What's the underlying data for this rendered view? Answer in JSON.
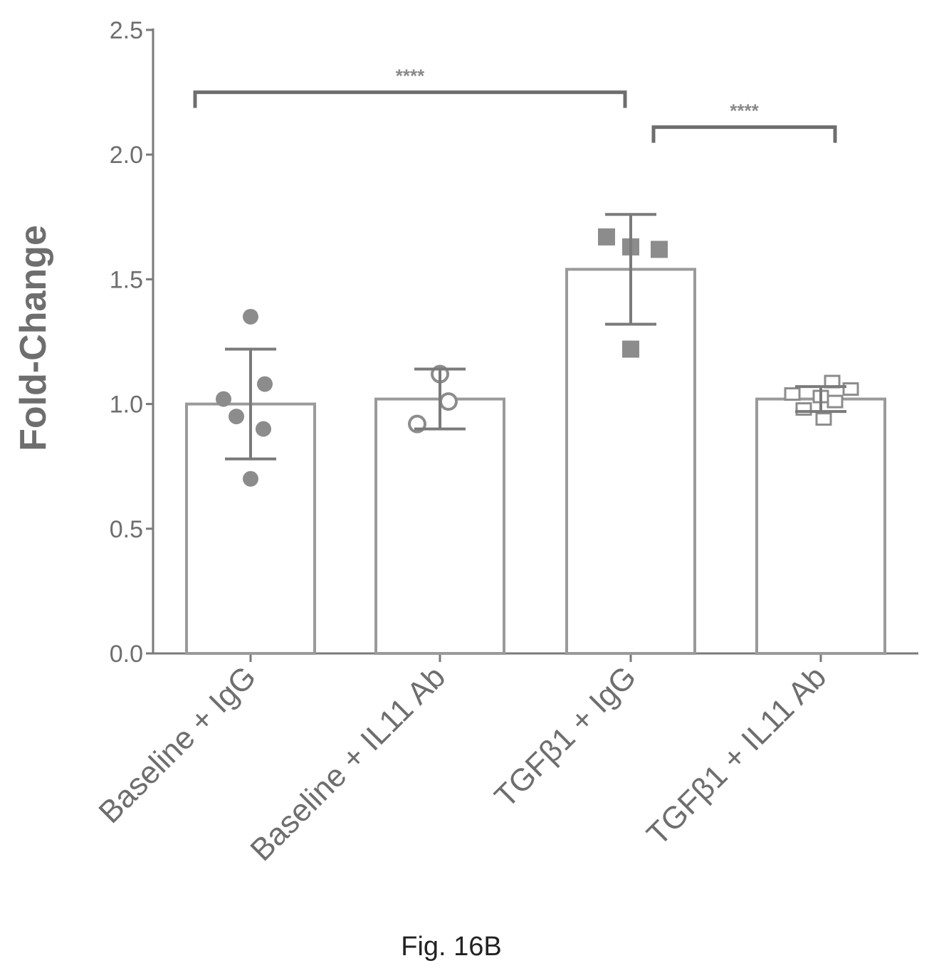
{
  "chart_data": {
    "type": "bar",
    "ylabel": "Fold-Change",
    "xlabel": "",
    "ylim": [
      0,
      2.5
    ],
    "yticks": [
      "0.0",
      "0.5",
      "1.0",
      "1.5",
      "2.0",
      "2.5"
    ],
    "categories": [
      "Baseline + IgG",
      "Baseline + IL11 Ab",
      "TGFβ1 + IgG",
      "TGFβ1 + IL11 Ab"
    ],
    "values": [
      1.0,
      1.02,
      1.54,
      1.02
    ],
    "error": [
      0.22,
      0.12,
      0.22,
      0.05
    ],
    "points": [
      [
        1.35,
        1.02,
        1.08,
        0.95,
        0.9,
        0.7
      ],
      [
        1.12,
        1.01,
        0.92
      ],
      [
        1.67,
        1.63,
        1.62,
        1.22
      ],
      [
        1.09,
        1.06,
        1.04,
        1.03,
        1.01,
        0.98,
        0.94
      ]
    ],
    "marker_shapes": [
      "circle",
      "open-circle",
      "square",
      "open-square"
    ],
    "significance": [
      {
        "from": 0,
        "to": 2,
        "label": "****"
      },
      {
        "from": 2,
        "to": 3,
        "label": "****"
      }
    ],
    "caption": "Fig. 16B",
    "colors": {
      "axis": "#7a7a7a",
      "bar": "#9a9a9a",
      "marker": "#8c8c8c"
    }
  }
}
